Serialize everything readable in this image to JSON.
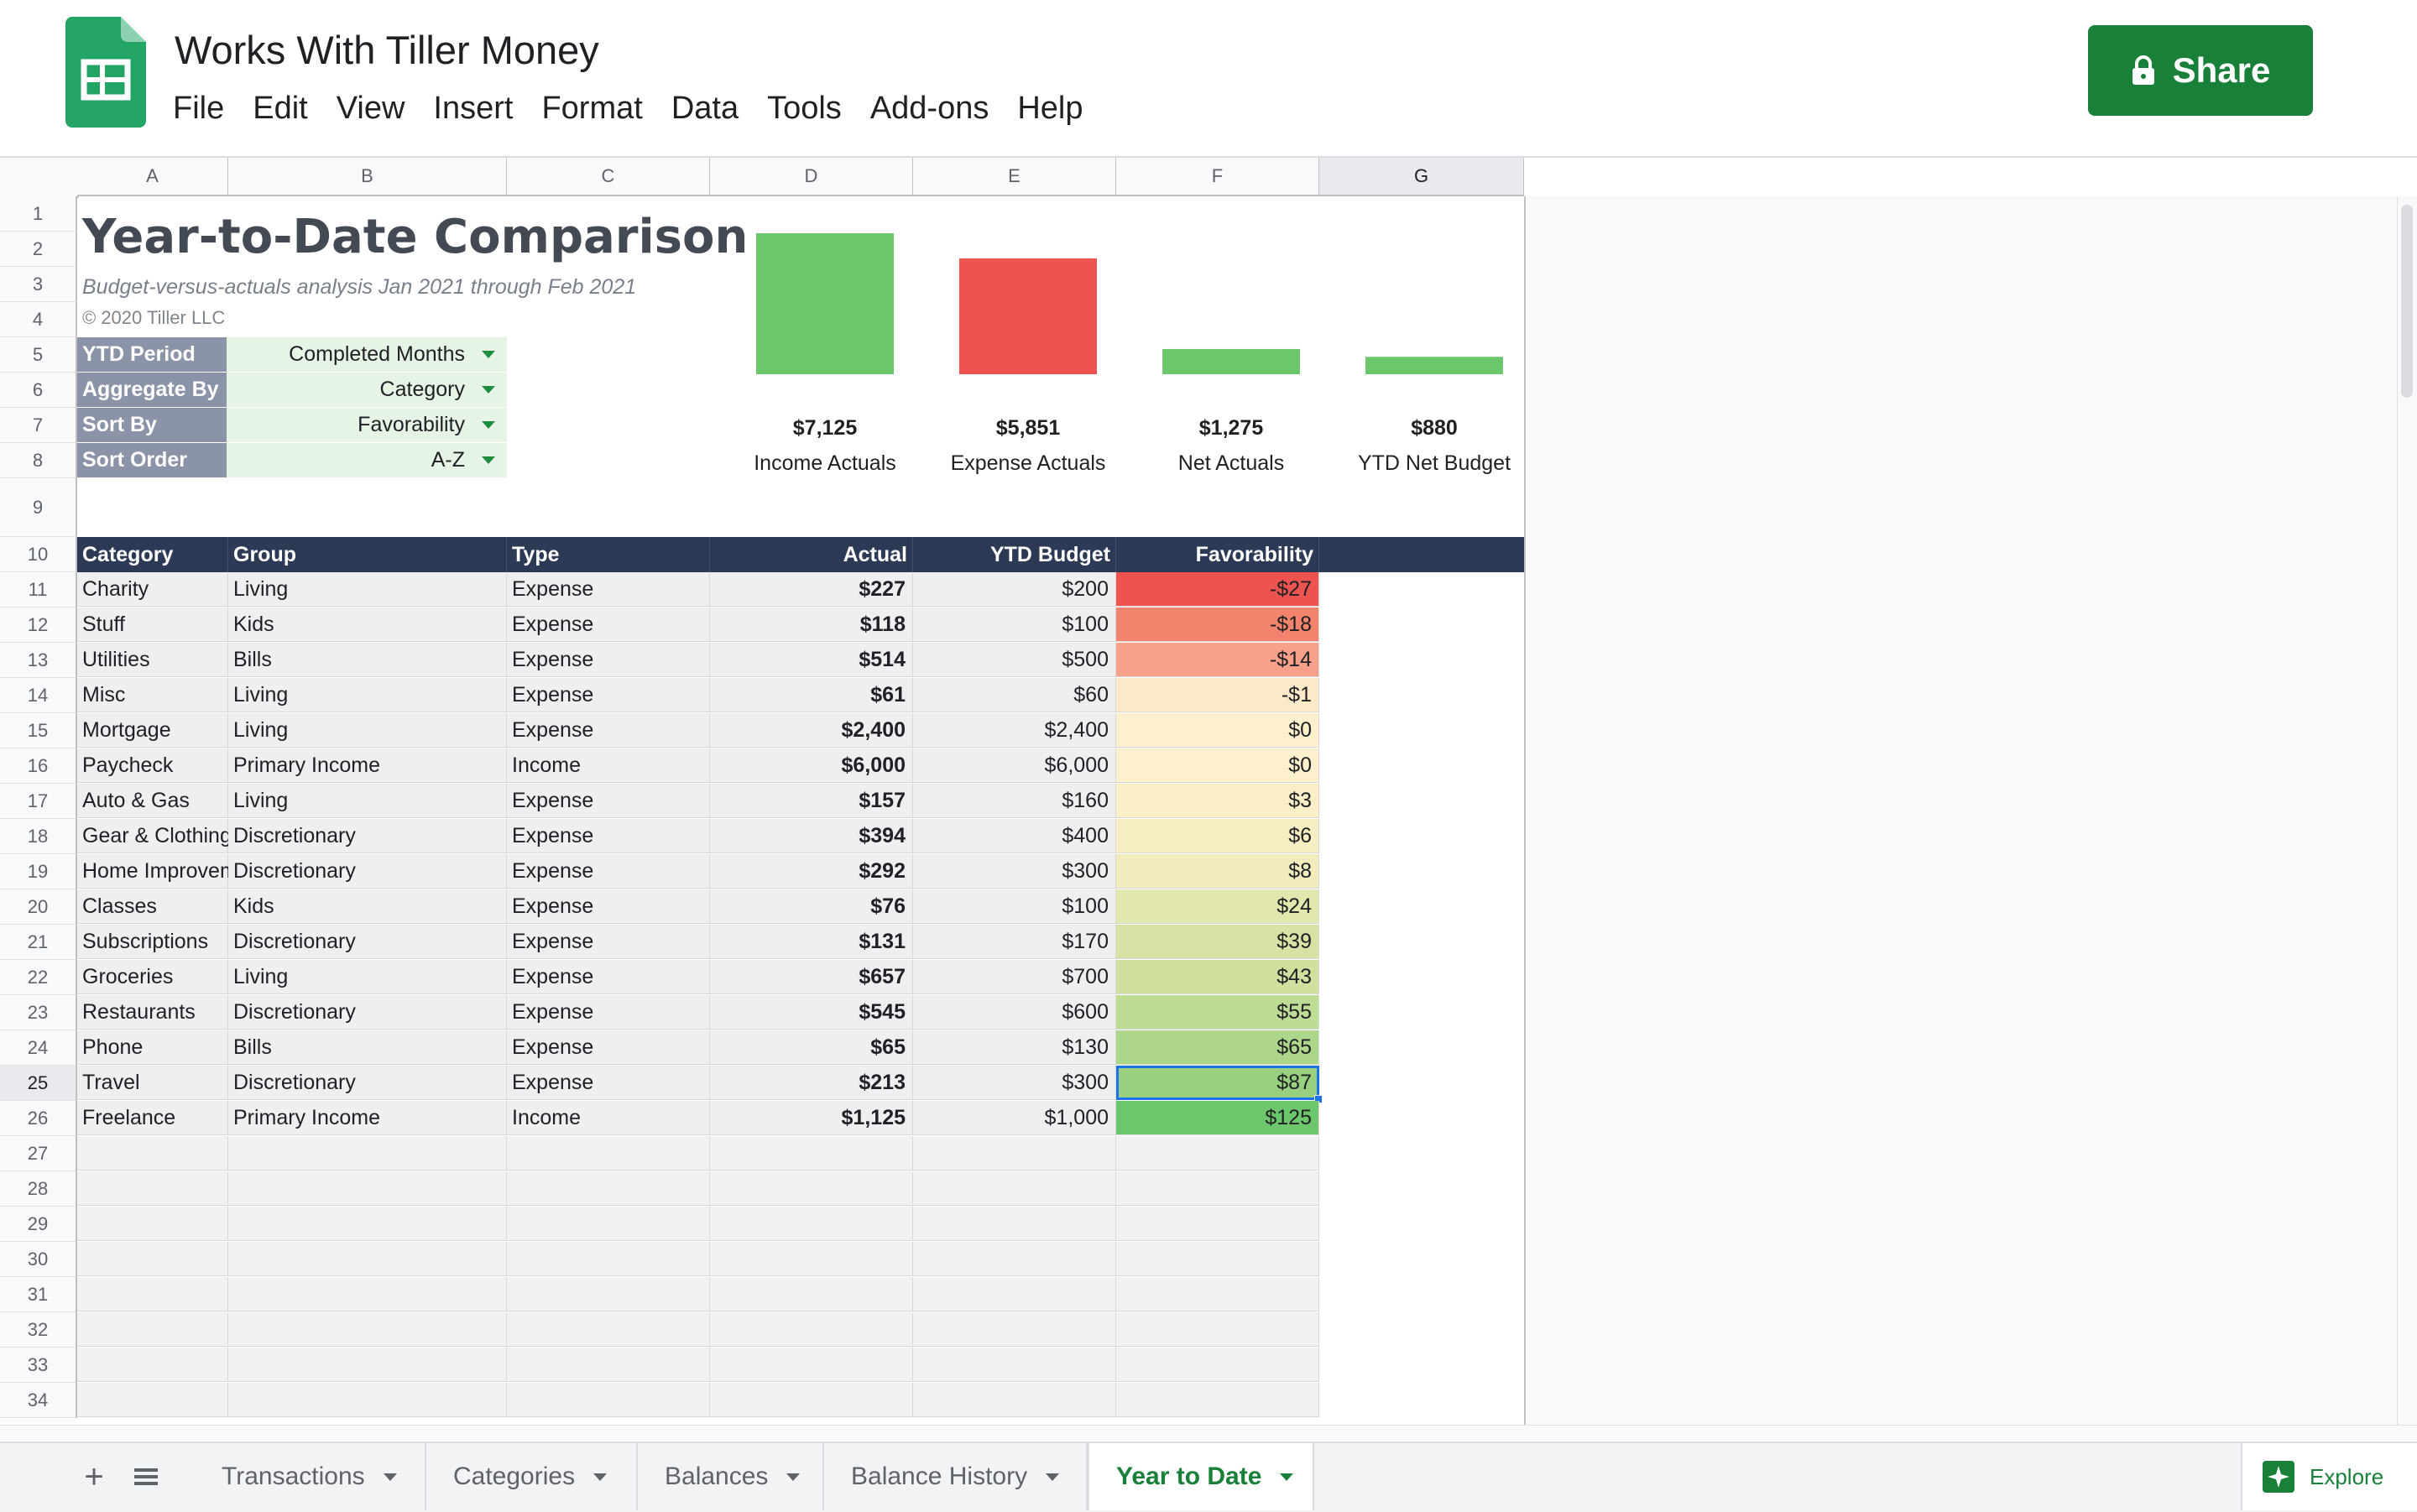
{
  "document": {
    "title": "Works With Tiller Money"
  },
  "menu": [
    "File",
    "Edit",
    "View",
    "Insert",
    "Format",
    "Data",
    "Tools",
    "Add-ons",
    "Help"
  ],
  "share": {
    "label": "Share"
  },
  "columns": [
    "A",
    "B",
    "C",
    "D",
    "E",
    "F",
    "G"
  ],
  "selected_column": "G",
  "rows": [
    "1",
    "2",
    "3",
    "4",
    "5",
    "6",
    "7",
    "8",
    "9",
    "10",
    "11",
    "12",
    "13",
    "14",
    "15",
    "16",
    "17",
    "18",
    "19",
    "20",
    "21",
    "22",
    "23",
    "24",
    "25",
    "26",
    "27",
    "28",
    "29",
    "30",
    "31",
    "32",
    "33",
    "34"
  ],
  "selected_row": "25",
  "report": {
    "title": "Year-to-Date Comparison",
    "subtitle": "Budget-versus-actuals analysis Jan 2021 through Feb 2021",
    "copyright": "© 2020 Tiller LLC"
  },
  "settings": [
    {
      "label": "YTD Period",
      "value": "Completed Months"
    },
    {
      "label": "Aggregate By",
      "value": "Category"
    },
    {
      "label": "Sort By",
      "value": "Favorability"
    },
    {
      "label": "Sort Order",
      "value": "A-Z"
    }
  ],
  "chart_data": {
    "type": "bar",
    "categories": [
      "Income Actuals",
      "Expense Actuals",
      "Net Actuals",
      "YTD Net Budget"
    ],
    "values": [
      7125,
      5851,
      1275,
      880
    ],
    "value_labels": [
      "$7,125",
      "$5,851",
      "$1,275",
      "$880"
    ],
    "colors": [
      "#6cc76c",
      "#ef5350",
      "#6cc76c",
      "#6cc76c"
    ],
    "ylim": [
      0,
      7125
    ]
  },
  "table": {
    "headers": [
      "Category",
      "Group",
      "Type",
      "Actual",
      "YTD Budget",
      "Favorability"
    ],
    "rows": [
      {
        "category": "Charity",
        "group": "Living",
        "type": "Expense",
        "actual": "$227",
        "budget": "$200",
        "favorability": "-$27",
        "fav_color": "#ef5350"
      },
      {
        "category": "Stuff",
        "group": "Kids",
        "type": "Expense",
        "actual": "$118",
        "budget": "$100",
        "favorability": "-$18",
        "fav_color": "#f3836d"
      },
      {
        "category": "Utilities",
        "group": "Bills",
        "type": "Expense",
        "actual": "$514",
        "budget": "$500",
        "favorability": "-$14",
        "fav_color": "#f7a08a"
      },
      {
        "category": "Misc",
        "group": "Living",
        "type": "Expense",
        "actual": "$61",
        "budget": "$60",
        "favorability": "-$1",
        "fav_color": "#fde8c8"
      },
      {
        "category": "Mortgage",
        "group": "Living",
        "type": "Expense",
        "actual": "$2,400",
        "budget": "$2,400",
        "favorability": "$0",
        "fav_color": "#fdf0cc"
      },
      {
        "category": "Paycheck",
        "group": "Primary Income",
        "type": "Income",
        "actual": "$6,000",
        "budget": "$6,000",
        "favorability": "$0",
        "fav_color": "#fdf0cc"
      },
      {
        "category": "Auto & Gas",
        "group": "Living",
        "type": "Expense",
        "actual": "$157",
        "budget": "$160",
        "favorability": "$3",
        "fav_color": "#faefc6"
      },
      {
        "category": "Gear & Clothing",
        "group": "Discretionary",
        "type": "Expense",
        "actual": "$394",
        "budget": "$400",
        "favorability": "$6",
        "fav_color": "#f6edc2"
      },
      {
        "category": "Home Improvements",
        "group": "Discretionary",
        "type": "Expense",
        "actual": "$292",
        "budget": "$300",
        "favorability": "$8",
        "fav_color": "#f1ebbe"
      },
      {
        "category": "Classes",
        "group": "Kids",
        "type": "Expense",
        "actual": "$76",
        "budget": "$100",
        "favorability": "$24",
        "fav_color": "#e2e7ad"
      },
      {
        "category": "Subscriptions",
        "group": "Discretionary",
        "type": "Expense",
        "actual": "$131",
        "budget": "$170",
        "favorability": "$39",
        "fav_color": "#d7e3a4"
      },
      {
        "category": "Groceries",
        "group": "Living",
        "type": "Expense",
        "actual": "$657",
        "budget": "$700",
        "favorability": "$43",
        "fav_color": "#cfe09f"
      },
      {
        "category": "Restaurants",
        "group": "Discretionary",
        "type": "Expense",
        "actual": "$545",
        "budget": "$600",
        "favorability": "$55",
        "fav_color": "#bddc94"
      },
      {
        "category": "Phone",
        "group": "Bills",
        "type": "Expense",
        "actual": "$65",
        "budget": "$130",
        "favorability": "$65",
        "fav_color": "#acd68a"
      },
      {
        "category": "Travel",
        "group": "Discretionary",
        "type": "Expense",
        "actual": "$213",
        "budget": "$300",
        "favorability": "$87",
        "fav_color": "#98d07f",
        "selected": true
      },
      {
        "category": "Freelance",
        "group": "Primary Income",
        "type": "Income",
        "actual": "$1,125",
        "budget": "$1,000",
        "favorability": "$125",
        "fav_color": "#6cc76c"
      }
    ]
  },
  "tabs": [
    {
      "label": "Transactions",
      "active": false
    },
    {
      "label": "Categories",
      "active": false
    },
    {
      "label": "Balances",
      "active": false
    },
    {
      "label": "Balance History",
      "active": false
    },
    {
      "label": "Year to Date",
      "active": true
    }
  ],
  "explore": {
    "label": "Explore"
  },
  "icons": {
    "logo": "sheets-logo-icon",
    "lock": "lock-icon",
    "add_sheet": "plus-icon",
    "all_sheets": "list-icon",
    "explore": "explore-icon"
  }
}
